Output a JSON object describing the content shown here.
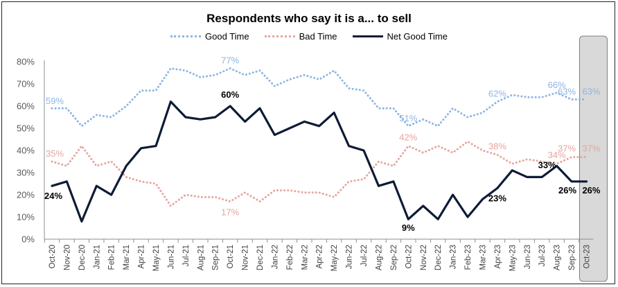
{
  "chart_data": {
    "type": "line",
    "title": "Respondents who say it is a... to sell",
    "categories": [
      "Oct-20",
      "Nov-20",
      "Dec-20",
      "Jan-21",
      "Feb-21",
      "Mar-21",
      "Apr-21",
      "May-21",
      "Jun-21",
      "Jul-21",
      "Aug-21",
      "Sep-21",
      "Oct-21",
      "Nov-21",
      "Dec-21",
      "Jan-22",
      "Feb-22",
      "Mar-22",
      "Apr-22",
      "May-22",
      "Jun-22",
      "Jul-22",
      "Aug-22",
      "Sep-22",
      "Oct-22",
      "Nov-22",
      "Dec-22",
      "Jan-23",
      "Feb-23",
      "Mar-23",
      "Apr-23",
      "May-23",
      "Jun-23",
      "Jul-23",
      "Aug-23",
      "Sep-23",
      "Oct-23"
    ],
    "ylim": [
      0,
      80
    ],
    "yticks": [
      0,
      10,
      20,
      30,
      40,
      50,
      60,
      70,
      80
    ],
    "ytick_labels": [
      "0%",
      "10%",
      "20%",
      "30%",
      "40%",
      "50%",
      "60%",
      "70%",
      "80%"
    ],
    "grid": false,
    "legend_position": "top-center",
    "series": [
      {
        "name": "Good Time",
        "style": "dotted",
        "color": "#8EB4E3",
        "values": [
          59,
          59,
          51,
          56,
          55,
          60,
          67,
          67,
          77,
          76,
          73,
          74,
          77,
          74,
          76,
          69,
          72,
          74,
          72,
          76,
          68,
          67,
          59,
          59,
          51,
          54,
          51,
          59,
          55,
          57,
          62,
          65,
          64,
          64,
          66,
          63,
          63
        ]
      },
      {
        "name": "Bad Time",
        "style": "dotted",
        "color": "#E6A59E",
        "values": [
          35,
          33,
          42,
          33,
          35,
          28,
          26,
          25,
          15,
          20,
          19,
          19,
          17,
          21,
          17,
          22,
          22,
          21,
          21,
          19,
          26,
          27,
          35,
          33,
          42,
          39,
          42,
          39,
          44,
          40,
          38,
          34,
          36,
          35,
          34,
          37,
          37
        ]
      },
      {
        "name": "Net Good Time",
        "style": "solid",
        "color": "#0D1B36",
        "values": [
          24,
          26,
          8,
          24,
          20,
          33,
          41,
          42,
          62,
          55,
          54,
          55,
          60,
          53,
          59,
          47,
          50,
          53,
          51,
          57,
          42,
          40,
          24,
          26,
          9,
          15,
          9,
          20,
          10,
          18,
          23,
          31,
          28,
          28,
          33,
          26,
          26
        ]
      }
    ],
    "annotations": [
      {
        "series": 0,
        "index": 0,
        "text": "59%"
      },
      {
        "series": 0,
        "index": 12,
        "text": "77%"
      },
      {
        "series": 0,
        "index": 24,
        "text": "51%"
      },
      {
        "series": 0,
        "index": 30,
        "text": "62%"
      },
      {
        "series": 0,
        "index": 34,
        "text": "66%"
      },
      {
        "series": 0,
        "index": 35,
        "text": "63%"
      },
      {
        "series": 0,
        "index": 36,
        "text": "63%"
      },
      {
        "series": 1,
        "index": 0,
        "text": "35%"
      },
      {
        "series": 1,
        "index": 12,
        "text": "17%"
      },
      {
        "series": 1,
        "index": 24,
        "text": "42%"
      },
      {
        "series": 1,
        "index": 30,
        "text": "38%"
      },
      {
        "series": 1,
        "index": 34,
        "text": "34%"
      },
      {
        "series": 1,
        "index": 35,
        "text": "37%"
      },
      {
        "series": 1,
        "index": 36,
        "text": "37%"
      },
      {
        "series": 2,
        "index": 0,
        "text": "24%"
      },
      {
        "series": 2,
        "index": 12,
        "text": "60%"
      },
      {
        "series": 2,
        "index": 24,
        "text": "9%"
      },
      {
        "series": 2,
        "index": 30,
        "text": "23%"
      },
      {
        "series": 2,
        "index": 34,
        "text": "33%"
      },
      {
        "series": 2,
        "index": 35,
        "text": "26%"
      },
      {
        "series": 2,
        "index": 36,
        "text": "26%"
      }
    ],
    "highlight_category": "Oct-23",
    "highlight_color": "#D9D9D9"
  }
}
